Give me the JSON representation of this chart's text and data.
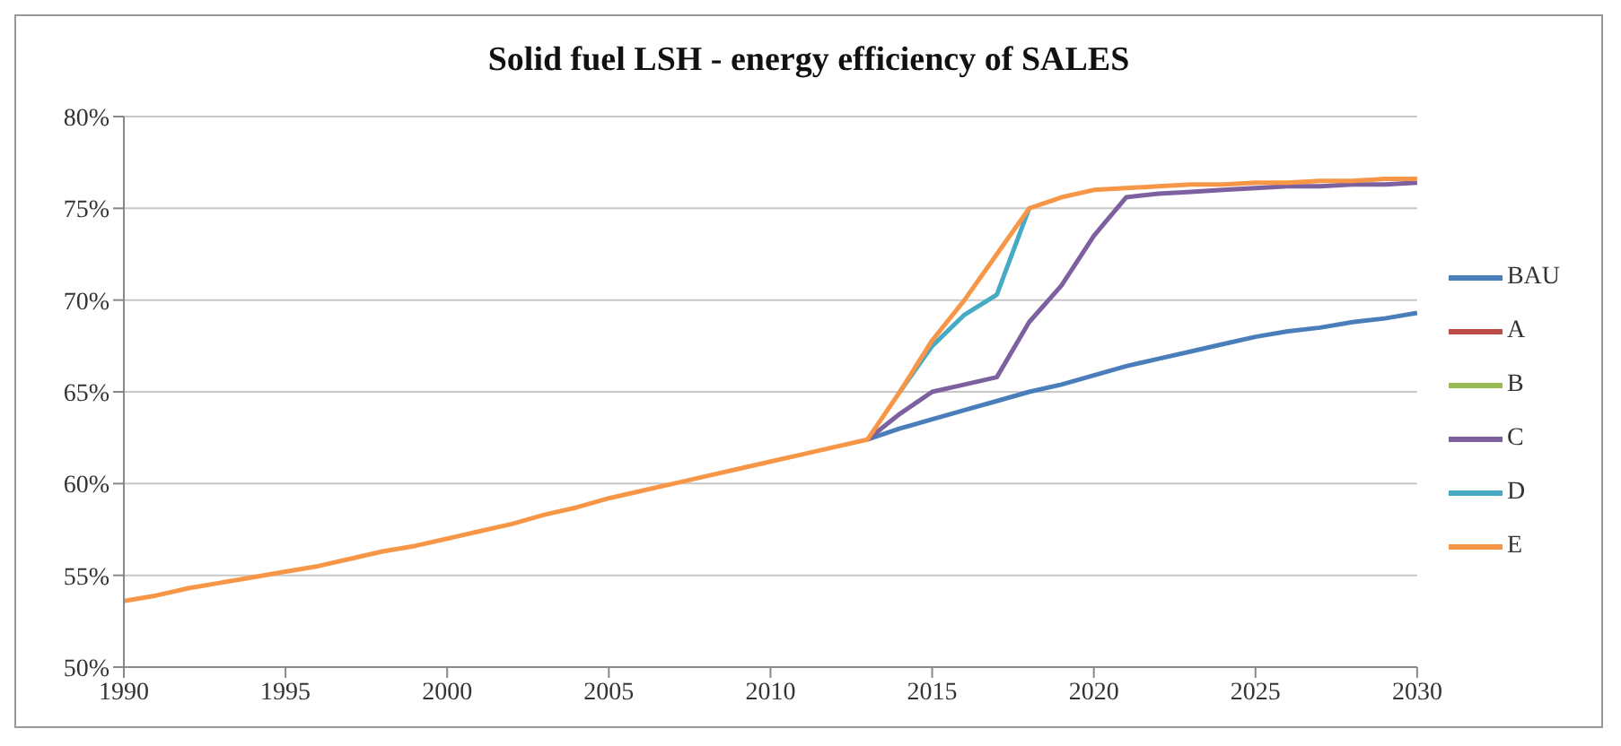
{
  "chart_data": {
    "type": "line",
    "title": "Solid  fuel LSH - energy efficiency of SALES",
    "x": [
      1990,
      1991,
      1992,
      1993,
      1994,
      1995,
      1996,
      1997,
      1998,
      1999,
      2000,
      2001,
      2002,
      2003,
      2004,
      2005,
      2006,
      2007,
      2008,
      2009,
      2010,
      2011,
      2012,
      2013,
      2014,
      2015,
      2016,
      2017,
      2018,
      2019,
      2020,
      2021,
      2022,
      2023,
      2024,
      2025,
      2026,
      2027,
      2028,
      2029,
      2030
    ],
    "series": [
      {
        "name": "BAU",
        "color": "#4a7ebb",
        "values": [
          null,
          null,
          null,
          null,
          null,
          null,
          null,
          null,
          null,
          null,
          null,
          null,
          null,
          null,
          null,
          null,
          null,
          null,
          null,
          null,
          null,
          null,
          null,
          62.4,
          63.0,
          63.5,
          64.0,
          64.5,
          65.0,
          65.4,
          65.9,
          66.4,
          66.8,
          67.2,
          67.6,
          68.0,
          68.3,
          68.5,
          68.8,
          69.0,
          69.3
        ]
      },
      {
        "name": "A",
        "color": "#be4b48",
        "values": [
          null,
          null,
          null,
          null,
          null,
          null,
          null,
          null,
          null,
          null,
          null,
          null,
          null,
          null,
          null,
          null,
          null,
          null,
          null,
          null,
          null,
          null,
          null,
          null,
          null,
          null,
          null,
          null,
          null,
          null,
          null,
          null,
          null,
          null,
          null,
          null,
          null,
          null,
          null,
          null,
          null
        ]
      },
      {
        "name": "B",
        "color": "#98b954",
        "values": [
          null,
          null,
          null,
          null,
          null,
          null,
          null,
          null,
          null,
          null,
          null,
          null,
          null,
          null,
          null,
          null,
          null,
          null,
          null,
          null,
          null,
          null,
          null,
          null,
          null,
          null,
          null,
          null,
          null,
          null,
          null,
          null,
          null,
          null,
          null,
          null,
          null,
          null,
          null,
          null,
          null
        ]
      },
      {
        "name": "C",
        "color": "#7d60a0",
        "values": [
          null,
          null,
          null,
          null,
          null,
          null,
          null,
          null,
          null,
          null,
          null,
          null,
          null,
          null,
          null,
          null,
          null,
          null,
          null,
          null,
          null,
          null,
          null,
          62.4,
          63.8,
          65.0,
          65.4,
          65.8,
          68.8,
          70.8,
          73.5,
          75.6,
          75.8,
          75.9,
          76.0,
          76.1,
          76.2,
          76.2,
          76.3,
          76.3,
          76.4
        ]
      },
      {
        "name": "D",
        "color": "#46aac5",
        "values": [
          null,
          null,
          null,
          null,
          null,
          null,
          null,
          null,
          null,
          null,
          null,
          null,
          null,
          null,
          null,
          null,
          null,
          null,
          null,
          null,
          null,
          null,
          null,
          null,
          65.0,
          67.5,
          69.2,
          70.3,
          75.0,
          null,
          null,
          null,
          null,
          null,
          null,
          null,
          null,
          null,
          null,
          null,
          null
        ]
      },
      {
        "name": "E",
        "color": "#f79646",
        "values": [
          53.6,
          53.9,
          54.3,
          54.6,
          54.9,
          55.2,
          55.5,
          55.9,
          56.3,
          56.6,
          57.0,
          57.4,
          57.8,
          58.3,
          58.7,
          59.2,
          59.6,
          60.0,
          60.4,
          60.8,
          61.2,
          61.6,
          62.0,
          62.4,
          65.0,
          67.8,
          70.0,
          72.5,
          75.0,
          75.6,
          76.0,
          76.1,
          76.2,
          76.3,
          76.3,
          76.4,
          76.4,
          76.5,
          76.5,
          76.6,
          76.6
        ]
      }
    ],
    "xlim": [
      1990,
      2030
    ],
    "xticks": [
      1990,
      1995,
      2000,
      2005,
      2010,
      2015,
      2020,
      2025,
      2030
    ],
    "ylim": [
      50,
      80
    ],
    "yticks": [
      {
        "value": 50,
        "label": "50%"
      },
      {
        "value": 55,
        "label": "55%"
      },
      {
        "value": 60,
        "label": "60%"
      },
      {
        "value": 65,
        "label": "65%"
      },
      {
        "value": 70,
        "label": "70%"
      },
      {
        "value": 75,
        "label": "75%"
      },
      {
        "value": 80,
        "label": "80%"
      }
    ],
    "grid": "y",
    "legend": "right",
    "marker": "none",
    "line_style": "solid"
  }
}
